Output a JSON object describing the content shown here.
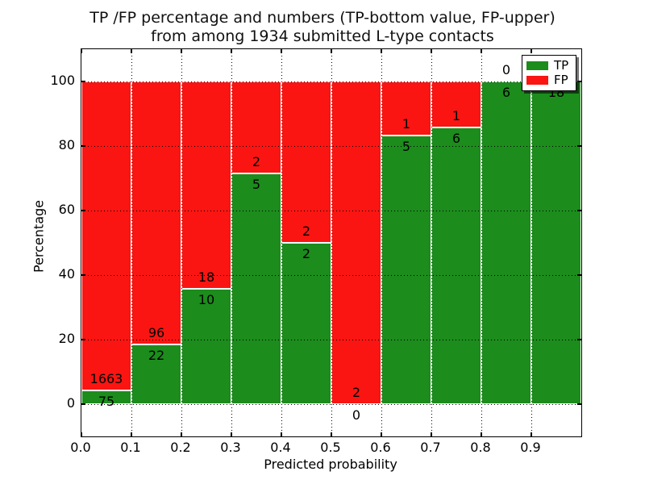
{
  "title": {
    "line1": "TP /FP percentage and numbers (TP-bottom value, FP-upper)",
    "line2": "from among 1934 submitted L-type contacts"
  },
  "axes": {
    "xlabel": "Predicted probability",
    "ylabel": "Percentage",
    "x_tick_labels": [
      "0.0",
      "0.1",
      "0.2",
      "0.3",
      "0.4",
      "0.5",
      "0.6",
      "0.7",
      "0.8",
      "0.9"
    ],
    "y_tick_labels": [
      "0",
      "20",
      "40",
      "60",
      "80",
      "100"
    ],
    "y_tick_values": [
      0,
      20,
      40,
      60,
      80,
      100
    ]
  },
  "legend": {
    "items": [
      {
        "label": "TP",
        "color": "#1c8c1c"
      },
      {
        "label": "FP",
        "color": "#fa1512"
      }
    ]
  },
  "colors": {
    "tp": "#1c8c1c",
    "fp": "#fa1512",
    "bar_edge": "#ffffff",
    "grid": "#000000",
    "text": "#000000"
  },
  "chart_data": {
    "type": "bar",
    "stacked": true,
    "normalized_to_100": true,
    "title": "TP /FP percentage and numbers (TP-bottom value, FP-upper) from among 1934 submitted L-type contacts",
    "xlabel": "Predicted probability",
    "ylabel": "Percentage",
    "xlim": [
      0.0,
      1.0
    ],
    "ylim": [
      -10,
      110
    ],
    "grid": true,
    "legend_position": "upper right",
    "bin_width": 0.1,
    "bin_starts": [
      0.0,
      0.1,
      0.2,
      0.3,
      0.4,
      0.5,
      0.6,
      0.7,
      0.8,
      0.9
    ],
    "series": [
      {
        "name": "TP",
        "counts": [
          75,
          22,
          10,
          5,
          2,
          0,
          5,
          6,
          6,
          18
        ],
        "pct": [
          4.3,
          18.6,
          35.7,
          71.4,
          50.0,
          0.0,
          83.3,
          85.7,
          100.0,
          100.0
        ]
      },
      {
        "name": "FP",
        "counts": [
          1663,
          96,
          18,
          2,
          2,
          2,
          1,
          1,
          0,
          null
        ],
        "pct": [
          95.7,
          81.4,
          64.3,
          28.6,
          50.0,
          100.0,
          16.7,
          14.3,
          0.0,
          0.0
        ]
      }
    ],
    "annotation_rule": "FP count printed just above TP/FP boundary, TP count just below; last bin FP count hidden behind legend"
  }
}
